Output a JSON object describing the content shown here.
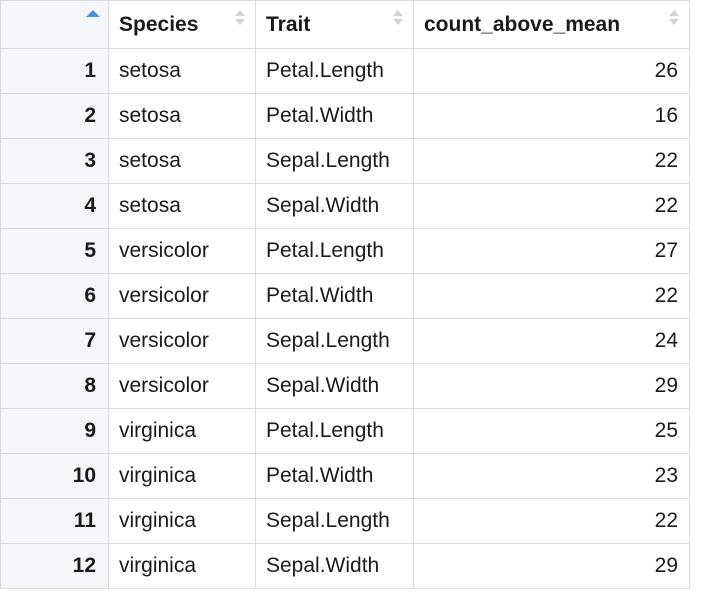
{
  "table": {
    "columns": [
      {
        "key": "index",
        "label": "",
        "sort": "asc"
      },
      {
        "key": "species",
        "label": "Species",
        "sort": "none"
      },
      {
        "key": "trait",
        "label": "Trait",
        "sort": "none"
      },
      {
        "key": "count",
        "label": "count_above_mean",
        "sort": "none"
      }
    ],
    "rows": [
      {
        "index": "1",
        "species": "setosa",
        "trait": "Petal.Length",
        "count": "26"
      },
      {
        "index": "2",
        "species": "setosa",
        "trait": "Petal.Width",
        "count": "16"
      },
      {
        "index": "3",
        "species": "setosa",
        "trait": "Sepal.Length",
        "count": "22"
      },
      {
        "index": "4",
        "species": "setosa",
        "trait": "Sepal.Width",
        "count": "22"
      },
      {
        "index": "5",
        "species": "versicolor",
        "trait": "Petal.Length",
        "count": "27"
      },
      {
        "index": "6",
        "species": "versicolor",
        "trait": "Petal.Width",
        "count": "22"
      },
      {
        "index": "7",
        "species": "versicolor",
        "trait": "Sepal.Length",
        "count": "24"
      },
      {
        "index": "8",
        "species": "versicolor",
        "trait": "Sepal.Width",
        "count": "29"
      },
      {
        "index": "9",
        "species": "virginica",
        "trait": "Petal.Length",
        "count": "25"
      },
      {
        "index": "10",
        "species": "virginica",
        "trait": "Petal.Width",
        "count": "23"
      },
      {
        "index": "11",
        "species": "virginica",
        "trait": "Sepal.Length",
        "count": "22"
      },
      {
        "index": "12",
        "species": "virginica",
        "trait": "Sepal.Width",
        "count": "29"
      }
    ]
  },
  "icons": {
    "sort_active": "sort-ascending-icon",
    "sort_idle": "sort-both-icon"
  },
  "colors": {
    "sort_active": "#4a90d9",
    "sort_idle": "#d3d3d3",
    "index_bg": "#f4f6f9",
    "border": "#dcdcdc"
  }
}
